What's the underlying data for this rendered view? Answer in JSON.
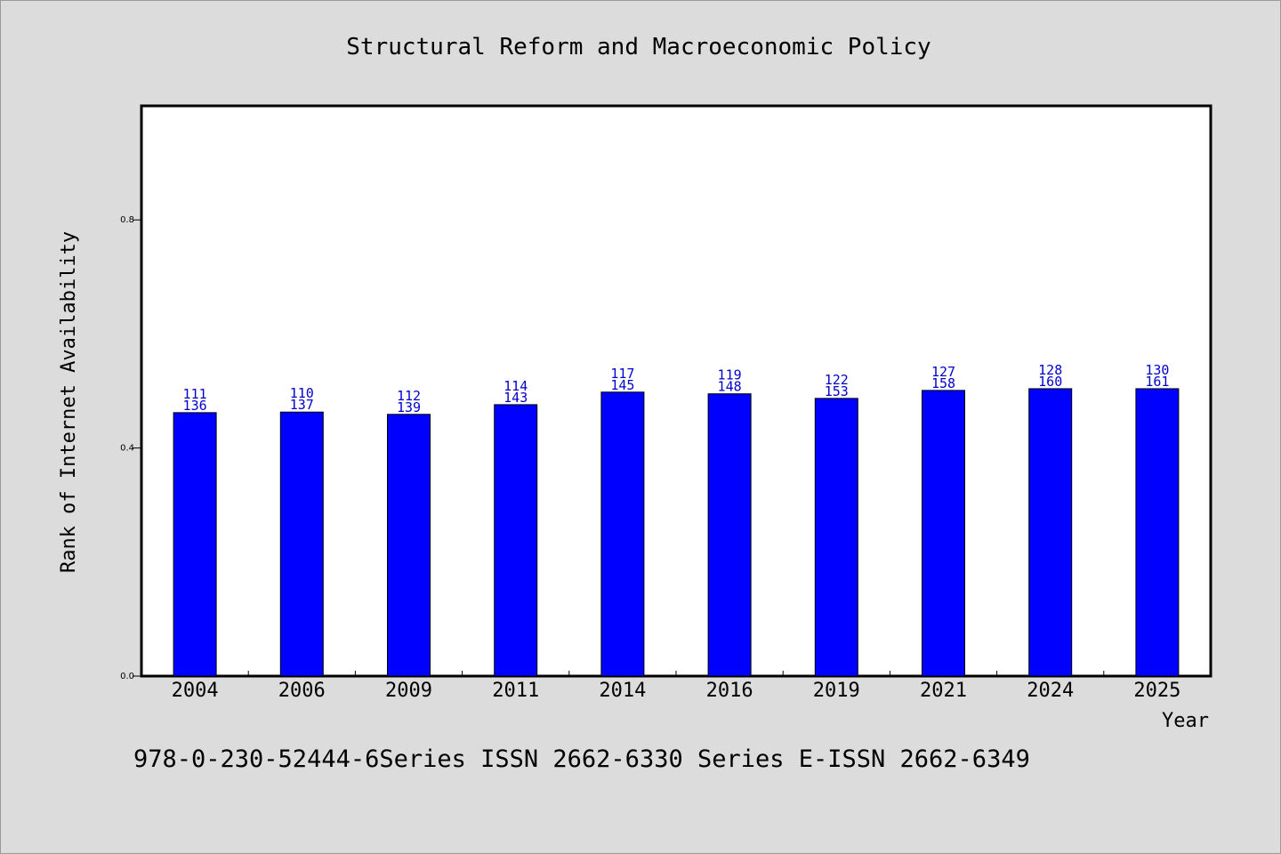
{
  "chart_data": {
    "type": "bar",
    "title": "Structural Reform and Macroeconomic Policy",
    "xlabel": "Year",
    "ylabel": "Rank of Internet Availability",
    "categories": [
      "2004",
      "2006",
      "2009",
      "2011",
      "2014",
      "2016",
      "2019",
      "2021",
      "2024",
      "2025"
    ],
    "values": [
      0.462,
      0.463,
      0.459,
      0.476,
      0.498,
      0.495,
      0.487,
      0.501,
      0.504,
      0.504
    ],
    "label_top": [
      "111",
      "110",
      "112",
      "114",
      "117",
      "119",
      "122",
      "127",
      "128",
      "130"
    ],
    "label_bottom": [
      "136",
      "137",
      "139",
      "143",
      "145",
      "148",
      "153",
      "158",
      "160",
      "161"
    ],
    "ylim": [
      0,
      1.0
    ],
    "yticks": [
      0.0,
      0.4,
      0.8
    ],
    "ytick_labels": [
      "0.0",
      "0.4",
      "0.8"
    ],
    "bar_color": "#0000ff",
    "label_color": "#0000cc",
    "grid": false,
    "legend": "none"
  },
  "footer": "978-0-230-52444-6Series ISSN 2662-6330 Series E-ISSN 2662-6349"
}
